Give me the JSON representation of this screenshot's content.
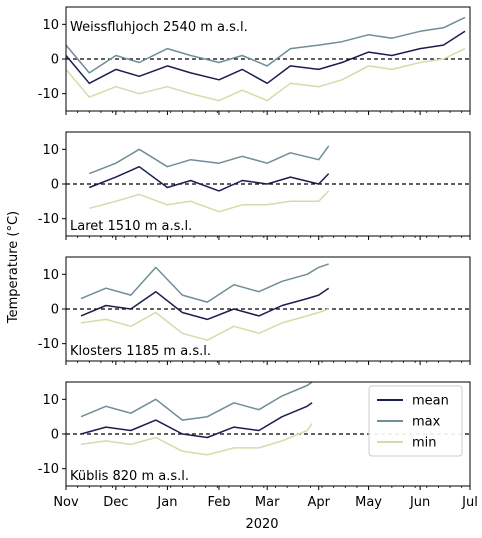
{
  "chart_data": {
    "type": "line",
    "ylabel": "Temperature (°C)",
    "xlabel": "2020",
    "x_ticks": [
      "Nov",
      "Dec",
      "Jan",
      "Feb",
      "Mar",
      "Apr",
      "May",
      "Jun",
      "Jul"
    ],
    "ylim": [
      -15,
      15
    ],
    "y_ticks": [
      -10,
      0,
      10
    ],
    "reference_line": 0,
    "colors": {
      "mean": "#1a1f4e",
      "max": "#6f8e96",
      "min": "#d4dcaa"
    },
    "legend": {
      "placement": "right",
      "entries": [
        "mean",
        "max",
        "min"
      ]
    },
    "panels": [
      {
        "station": "Weissfluhjoch 2540 m a.s.l.",
        "x_range": [
          "2019-11-01",
          "2020-06-30"
        ],
        "series": [
          {
            "name": "mean",
            "x": [
              "2019-11-01",
              "2019-11-15",
              "2019-12-01",
              "2019-12-15",
              "2020-01-01",
              "2020-01-15",
              "2020-02-01",
              "2020-02-15",
              "2020-03-01",
              "2020-03-15",
              "2020-04-01",
              "2020-04-15",
              "2020-05-01",
              "2020-05-15",
              "2020-06-01",
              "2020-06-15",
              "2020-06-28"
            ],
            "y": [
              1,
              -7,
              -3,
              -5,
              -2,
              -4,
              -6,
              -3,
              -7,
              -2,
              -3,
              -1,
              2,
              1,
              3,
              4,
              8
            ]
          },
          {
            "name": "max",
            "x": [
              "2019-11-01",
              "2019-11-15",
              "2019-12-01",
              "2019-12-15",
              "2020-01-01",
              "2020-01-15",
              "2020-02-01",
              "2020-02-15",
              "2020-03-01",
              "2020-03-15",
              "2020-04-01",
              "2020-04-15",
              "2020-05-01",
              "2020-05-15",
              "2020-06-01",
              "2020-06-15",
              "2020-06-28"
            ],
            "y": [
              4,
              -4,
              1,
              -1,
              3,
              1,
              -1,
              1,
              -2,
              3,
              4,
              5,
              7,
              6,
              8,
              9,
              12
            ]
          },
          {
            "name": "min",
            "x": [
              "2019-11-01",
              "2019-11-15",
              "2019-12-01",
              "2019-12-15",
              "2020-01-01",
              "2020-01-15",
              "2020-02-01",
              "2020-02-15",
              "2020-03-01",
              "2020-03-15",
              "2020-04-01",
              "2020-04-15",
              "2020-05-01",
              "2020-05-15",
              "2020-06-01",
              "2020-06-15",
              "2020-06-28"
            ],
            "y": [
              -3,
              -11,
              -8,
              -10,
              -8,
              -10,
              -12,
              -9,
              -12,
              -7,
              -8,
              -6,
              -2,
              -3,
              -1,
              0,
              3
            ]
          }
        ]
      },
      {
        "station": "Laret 1510 m a.s.l.",
        "x_range": [
          "2019-11-01",
          "2020-06-30"
        ],
        "series": [
          {
            "name": "mean",
            "x": [
              "2019-11-15",
              "2019-12-01",
              "2019-12-15",
              "2020-01-01",
              "2020-01-15",
              "2020-02-01",
              "2020-02-15",
              "2020-03-01",
              "2020-03-15",
              "2020-04-01",
              "2020-04-07"
            ],
            "y": [
              -1,
              2,
              5,
              -1,
              1,
              -2,
              1,
              0,
              2,
              0,
              3
            ]
          },
          {
            "name": "max",
            "x": [
              "2019-11-15",
              "2019-12-01",
              "2019-12-15",
              "2020-01-01",
              "2020-01-15",
              "2020-02-01",
              "2020-02-15",
              "2020-03-01",
              "2020-03-15",
              "2020-04-01",
              "2020-04-07"
            ],
            "y": [
              3,
              6,
              10,
              5,
              7,
              6,
              8,
              6,
              9,
              7,
              11
            ]
          },
          {
            "name": "min",
            "x": [
              "2019-11-15",
              "2019-12-01",
              "2019-12-15",
              "2020-01-01",
              "2020-01-15",
              "2020-02-01",
              "2020-02-15",
              "2020-03-01",
              "2020-03-15",
              "2020-04-01",
              "2020-04-07"
            ],
            "y": [
              -7,
              -5,
              -3,
              -6,
              -5,
              -8,
              -6,
              -6,
              -5,
              -5,
              -2
            ]
          }
        ]
      },
      {
        "station": "Klosters 1185 m a.s.l.",
        "x_range": [
          "2019-11-01",
          "2020-06-30"
        ],
        "series": [
          {
            "name": "mean",
            "x": [
              "2019-11-10",
              "2019-11-25",
              "2019-12-10",
              "2019-12-25",
              "2020-01-10",
              "2020-01-25",
              "2020-02-10",
              "2020-02-25",
              "2020-03-10",
              "2020-03-25",
              "2020-04-01",
              "2020-04-07"
            ],
            "y": [
              -2,
              1,
              0,
              5,
              -1,
              -3,
              0,
              -2,
              1,
              3,
              4,
              6
            ]
          },
          {
            "name": "max",
            "x": [
              "2019-11-10",
              "2019-11-25",
              "2019-12-10",
              "2019-12-25",
              "2020-01-10",
              "2020-01-25",
              "2020-02-10",
              "2020-02-25",
              "2020-03-10",
              "2020-03-25",
              "2020-04-01",
              "2020-04-07"
            ],
            "y": [
              3,
              6,
              4,
              12,
              4,
              2,
              7,
              5,
              8,
              10,
              12,
              13
            ]
          },
          {
            "name": "min",
            "x": [
              "2019-11-10",
              "2019-11-25",
              "2019-12-10",
              "2019-12-25",
              "2020-01-10",
              "2020-01-25",
              "2020-02-10",
              "2020-02-25",
              "2020-03-10",
              "2020-03-25",
              "2020-04-01",
              "2020-04-07"
            ],
            "y": [
              -4,
              -3,
              -5,
              -1,
              -7,
              -9,
              -5,
              -7,
              -4,
              -2,
              -1,
              0
            ]
          }
        ]
      },
      {
        "station": "Küblis 820 m a.s.l.",
        "x_range": [
          "2019-11-01",
          "2020-06-30"
        ],
        "series": [
          {
            "name": "mean",
            "x": [
              "2019-11-10",
              "2019-11-25",
              "2019-12-10",
              "2019-12-25",
              "2020-01-10",
              "2020-01-25",
              "2020-02-10",
              "2020-02-25",
              "2020-03-10",
              "2020-03-25",
              "2020-03-28"
            ],
            "y": [
              0,
              2,
              1,
              4,
              0,
              -1,
              2,
              1,
              5,
              8,
              9
            ]
          },
          {
            "name": "max",
            "x": [
              "2019-11-10",
              "2019-11-25",
              "2019-12-10",
              "2019-12-25",
              "2020-01-10",
              "2020-01-25",
              "2020-02-10",
              "2020-02-25",
              "2020-03-10",
              "2020-03-25",
              "2020-03-28"
            ],
            "y": [
              5,
              8,
              6,
              10,
              4,
              5,
              9,
              7,
              11,
              14,
              15
            ]
          },
          {
            "name": "min",
            "x": [
              "2019-11-10",
              "2019-11-25",
              "2019-12-10",
              "2019-12-25",
              "2020-01-10",
              "2020-01-25",
              "2020-02-10",
              "2020-02-25",
              "2020-03-10",
              "2020-03-25",
              "2020-03-28"
            ],
            "y": [
              -3,
              -2,
              -3,
              -1,
              -5,
              -6,
              -4,
              -4,
              -2,
              1,
              3
            ]
          }
        ]
      }
    ]
  }
}
